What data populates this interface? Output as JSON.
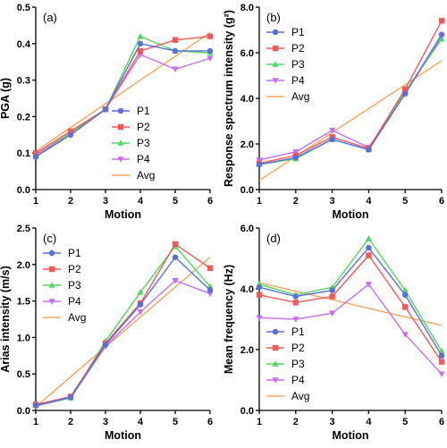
{
  "colors": {
    "P1": "#5b6fd8",
    "P2": "#f05a5a",
    "P3": "#4fd860",
    "P4": "#c86ef0",
    "Avg": "#f5a65b"
  },
  "chart_data": [
    {
      "type": "line",
      "panel_label": "(a)",
      "xlabel": "Motion",
      "ylabel": "PGA (g)",
      "x": [
        1,
        2,
        3,
        4,
        5,
        6
      ],
      "xticks": [
        "1",
        "2",
        "3",
        "4",
        "5",
        "6"
      ],
      "ylim": [
        0,
        0.5
      ],
      "yticks": [
        0,
        0.1,
        0.2,
        0.3,
        0.4,
        0.5
      ],
      "yticklabels": [
        "0.0",
        "0.1",
        "0.2",
        "0.3",
        "0.4",
        "0.5"
      ],
      "legend_position": "lower-right",
      "series": [
        {
          "name": "P1",
          "values": [
            0.09,
            0.15,
            0.22,
            0.4,
            0.38,
            0.38
          ]
        },
        {
          "name": "P2",
          "values": [
            0.1,
            0.16,
            0.22,
            0.38,
            0.41,
            0.42
          ]
        },
        {
          "name": "P3",
          "values": [
            0.09,
            0.155,
            0.22,
            0.42,
            0.38,
            0.375
          ]
        },
        {
          "name": "P4",
          "values": [
            0.095,
            0.155,
            0.22,
            0.37,
            0.33,
            0.36
          ]
        },
        {
          "name": "Avg",
          "values": [
            0.105,
            0.17,
            0.235,
            0.3,
            0.365,
            0.43
          ],
          "markers": false
        }
      ]
    },
    {
      "type": "line",
      "panel_label": "(b)",
      "xlabel": "Motion",
      "ylabel": "Response spectrum intensity (g²)",
      "x": [
        1,
        2,
        3,
        4,
        5,
        6
      ],
      "xticks": [
        "1",
        "2",
        "3",
        "4",
        "5",
        "6"
      ],
      "ylim": [
        0,
        8
      ],
      "yticks": [
        0,
        2,
        4,
        6,
        8
      ],
      "yticklabels": [
        "0.0",
        "2.0",
        "4.0",
        "6.0",
        "8.0"
      ],
      "legend_position": "top-left",
      "series": [
        {
          "name": "P1",
          "values": [
            1.1,
            1.4,
            2.2,
            1.75,
            4.2,
            6.8
          ]
        },
        {
          "name": "P2",
          "values": [
            1.15,
            1.5,
            2.3,
            1.8,
            4.4,
            7.4
          ]
        },
        {
          "name": "P3",
          "values": [
            1.1,
            1.35,
            2.2,
            1.75,
            4.3,
            6.6
          ]
        },
        {
          "name": "P4",
          "values": [
            1.3,
            1.65,
            2.6,
            1.85,
            4.2,
            6.7
          ]
        },
        {
          "name": "Avg",
          "values": [
            0.4,
            1.45,
            2.5,
            3.55,
            4.6,
            5.65
          ],
          "markers": false
        }
      ]
    },
    {
      "type": "line",
      "panel_label": "(c)",
      "xlabel": "Motion",
      "ylabel": "Arias intensity (m/s)",
      "x": [
        1,
        2,
        3,
        4,
        5,
        6
      ],
      "xticks": [
        "1",
        "2",
        "3",
        "4",
        "5",
        "6"
      ],
      "ylim": [
        0,
        2.5
      ],
      "yticks": [
        0,
        0.5,
        1.0,
        1.5,
        2.0,
        2.5
      ],
      "yticklabels": [
        "0.0",
        "0.5",
        "1.0",
        "1.5",
        "2.0",
        "2.5"
      ],
      "legend_position": "top-left",
      "series": [
        {
          "name": "P1",
          "values": [
            0.07,
            0.18,
            0.9,
            1.45,
            2.1,
            1.65
          ]
        },
        {
          "name": "P2",
          "values": [
            0.08,
            0.19,
            0.92,
            1.47,
            2.28,
            1.95
          ]
        },
        {
          "name": "P3",
          "values": [
            0.07,
            0.17,
            0.95,
            1.62,
            2.25,
            1.7
          ]
        },
        {
          "name": "P4",
          "values": [
            0.06,
            0.17,
            0.88,
            1.35,
            1.78,
            1.6
          ]
        },
        {
          "name": "Avg",
          "values": [
            0.05,
            0.46,
            0.87,
            1.28,
            1.69,
            2.1
          ],
          "markers": false
        }
      ]
    },
    {
      "type": "line",
      "panel_label": "(d)",
      "xlabel": "Motion",
      "ylabel": "Mean frequency (Hz)",
      "x": [
        1,
        2,
        3,
        4,
        5,
        6
      ],
      "xticks": [
        "1",
        "2",
        "3",
        "4",
        "5",
        "6"
      ],
      "ylim": [
        0,
        6
      ],
      "yticks": [
        0,
        2,
        4,
        6
      ],
      "yticklabels": [
        "0.0",
        "2.0",
        "4.0",
        "6.0"
      ],
      "legend_position": "bottom-left",
      "series": [
        {
          "name": "P1",
          "values": [
            4.05,
            3.75,
            3.95,
            5.35,
            3.8,
            1.8
          ]
        },
        {
          "name": "P2",
          "values": [
            3.8,
            3.55,
            3.75,
            5.1,
            3.4,
            1.6
          ]
        },
        {
          "name": "P3",
          "values": [
            4.15,
            3.8,
            4.05,
            5.65,
            3.95,
            1.95
          ]
        },
        {
          "name": "P4",
          "values": [
            3.05,
            3.0,
            3.2,
            4.15,
            2.5,
            1.2
          ]
        },
        {
          "name": "Avg",
          "values": [
            4.2,
            3.92,
            3.64,
            3.36,
            3.08,
            2.8
          ],
          "markers": false
        }
      ]
    }
  ]
}
